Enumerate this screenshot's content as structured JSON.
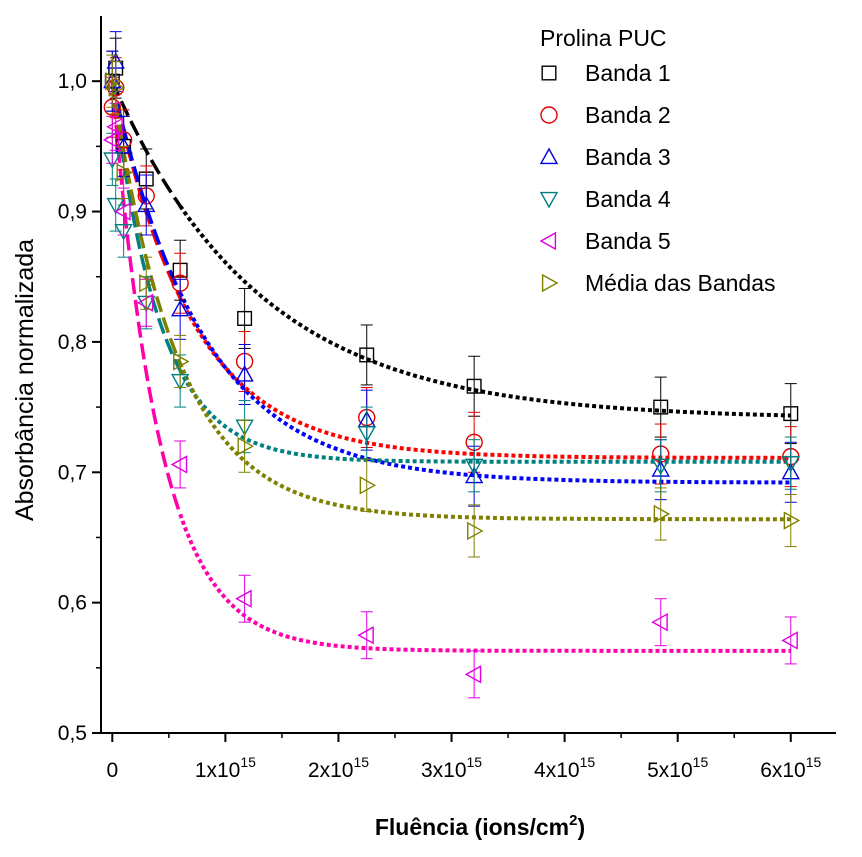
{
  "chart_data": {
    "type": "scatter",
    "xlabel": "Fluência (ions/cm",
    "xlabel_sup": "2",
    "xlabel_tail": ")",
    "ylabel": "Absorbância normalizada",
    "xlim": [
      -100000000000000.0,
      6400000000000000.0
    ],
    "ylim": [
      0.5,
      1.05
    ],
    "x_ticks": [
      0,
      1000000000000000.0,
      2000000000000000.0,
      3000000000000000.0,
      4000000000000000.0,
      5000000000000000.0,
      6000000000000000.0
    ],
    "x_tick_labels": [
      {
        "base": "0",
        "exp": ""
      },
      {
        "base": "1x10",
        "exp": "15"
      },
      {
        "base": "2x10",
        "exp": "15"
      },
      {
        "base": "3x10",
        "exp": "15"
      },
      {
        "base": "4x10",
        "exp": "15"
      },
      {
        "base": "5x10",
        "exp": "15"
      },
      {
        "base": "6x10",
        "exp": "15"
      }
    ],
    "y_ticks": [
      0.5,
      0.6,
      0.7,
      0.8,
      0.9,
      1.0
    ],
    "y_tick_labels": [
      "0,5",
      "0,6",
      "0,7",
      "0,8",
      "0,9",
      "1,0"
    ],
    "legend_title": "Prolina PUC",
    "legend_position": "top-right",
    "grid": false,
    "series": [
      {
        "name": "Banda 1",
        "marker": "square",
        "color": "#000000",
        "fit_color": "#000000",
        "points": [
          [
            0,
            1.0
          ],
          [
            30000000000000.0,
            1.01
          ],
          [
            100000000000000.0,
            0.95
          ],
          [
            300000000000000.0,
            0.925
          ],
          [
            600000000000000.0,
            0.855
          ],
          [
            1170000000000000.0,
            0.818
          ],
          [
            2250000000000000.0,
            0.79
          ],
          [
            3200000000000000.0,
            0.766
          ],
          [
            4850000000000000.0,
            0.75
          ],
          [
            6000000000000000.0,
            0.745
          ]
        ],
        "err": 0.023,
        "fit": {
          "y0": 0.741,
          "A": 0.259,
          "t": 1300000000000000.0
        }
      },
      {
        "name": "Banda 2",
        "marker": "circle",
        "color": "#e00000",
        "fit_color": "#ff0000",
        "points": [
          [
            0,
            0.98
          ],
          [
            30000000000000.0,
            0.995
          ],
          [
            100000000000000.0,
            0.955
          ],
          [
            300000000000000.0,
            0.912
          ],
          [
            600000000000000.0,
            0.845
          ],
          [
            1170000000000000.0,
            0.785
          ],
          [
            2250000000000000.0,
            0.742
          ],
          [
            3200000000000000.0,
            0.723
          ],
          [
            4850000000000000.0,
            0.714
          ],
          [
            6000000000000000.0,
            0.712
          ]
        ],
        "err": 0.023,
        "fit": {
          "y0": 0.711,
          "A": 0.289,
          "t": 700000000000000.0
        }
      },
      {
        "name": "Banda 3",
        "marker": "triangle-up",
        "color": "#0000e0",
        "fit_color": "#0000ff",
        "points": [
          [
            0,
            1.0
          ],
          [
            30000000000000.0,
            1.015
          ],
          [
            100000000000000.0,
            0.95
          ],
          [
            300000000000000.0,
            0.905
          ],
          [
            600000000000000.0,
            0.825
          ],
          [
            1170000000000000.0,
            0.775
          ],
          [
            2250000000000000.0,
            0.74
          ],
          [
            3200000000000000.0,
            0.697
          ],
          [
            4850000000000000.0,
            0.702
          ],
          [
            6000000000000000.0,
            0.7
          ]
        ],
        "err": 0.023,
        "fit": {
          "y0": 0.692,
          "A": 0.308,
          "t": 800000000000000.0
        }
      },
      {
        "name": "Banda 4",
        "marker": "triangle-down",
        "color": "#008080",
        "fit_color": "#008080",
        "points": [
          [
            0,
            0.94
          ],
          [
            30000000000000.0,
            0.905
          ],
          [
            100000000000000.0,
            0.885
          ],
          [
            300000000000000.0,
            0.83
          ],
          [
            600000000000000.0,
            0.77
          ],
          [
            1170000000000000.0,
            0.735
          ],
          [
            2250000000000000.0,
            0.73
          ],
          [
            3200000000000000.0,
            0.705
          ],
          [
            4850000000000000.0,
            0.705
          ],
          [
            6000000000000000.0,
            0.707
          ]
        ],
        "err": 0.02,
        "fit": {
          "y0": 0.708,
          "A": 0.292,
          "t": 420000000000000.0
        }
      },
      {
        "name": "Banda 5",
        "marker": "triangle-left",
        "color": "#e000e0",
        "fit_color": "#ff00aa",
        "points": [
          [
            0,
            0.955
          ],
          [
            30000000000000.0,
            0.965
          ],
          [
            100000000000000.0,
            0.9
          ],
          [
            300000000000000.0,
            0.83
          ],
          [
            600000000000000.0,
            0.706
          ],
          [
            1170000000000000.0,
            0.603
          ],
          [
            2250000000000000.0,
            0.575
          ],
          [
            3200000000000000.0,
            0.545
          ],
          [
            4850000000000000.0,
            0.585
          ],
          [
            6000000000000000.0,
            0.571
          ]
        ],
        "err": 0.018,
        "fit": {
          "y0": 0.563,
          "A": 0.437,
          "t": 420000000000000.0
        }
      },
      {
        "name": "Média das Bandas",
        "marker": "triangle-right",
        "color": "#808000",
        "fit_color": "#808000",
        "points": [
          [
            0,
            1.0
          ],
          [
            30000000000000.0,
            0.995
          ],
          [
            100000000000000.0,
            0.93
          ],
          [
            300000000000000.0,
            0.845
          ],
          [
            600000000000000.0,
            0.785
          ],
          [
            1170000000000000.0,
            0.72
          ],
          [
            2250000000000000.0,
            0.69
          ],
          [
            3200000000000000.0,
            0.655
          ],
          [
            4850000000000000.0,
            0.668
          ],
          [
            6000000000000000.0,
            0.663
          ]
        ],
        "err": 0.02,
        "fit": {
          "y0": 0.664,
          "A": 0.336,
          "t": 580000000000000.0
        }
      }
    ]
  }
}
